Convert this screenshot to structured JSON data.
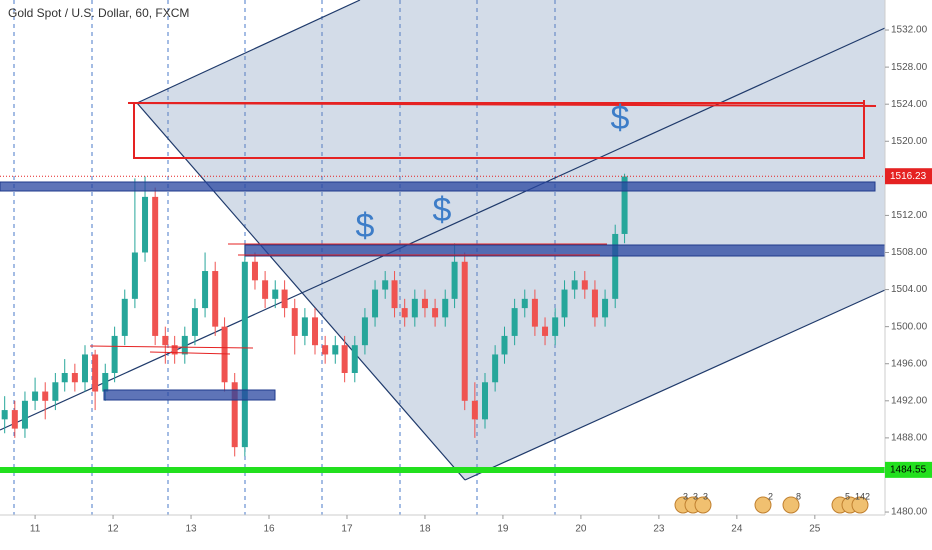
{
  "chart_data": {
    "type": "candlestick",
    "title": "Gold Spot / U.S. Dollar, 60, FXCM",
    "x": [
      -0.39,
      -0.26,
      -0.13,
      0.0,
      0.13,
      0.26,
      0.38,
      0.51,
      0.64,
      0.77,
      0.9,
      1.02,
      1.15,
      1.28,
      1.41,
      1.54,
      1.67,
      1.79,
      1.92,
      2.05,
      2.18,
      2.31,
      2.43,
      2.56,
      2.69,
      2.82,
      2.95,
      3.08,
      3.2,
      3.33,
      3.46,
      3.59,
      3.72,
      3.85,
      3.97,
      4.1,
      4.23,
      4.36,
      4.49,
      4.61,
      4.74,
      4.87,
      5.0,
      5.13,
      5.26,
      5.38,
      5.51,
      5.64,
      5.77,
      5.9,
      6.02,
      6.15,
      6.28,
      6.41,
      6.54,
      6.67,
      6.79,
      6.92,
      7.05,
      7.18,
      7.31,
      7.44,
      7.56
    ],
    "open": [
      1490,
      1491,
      1489,
      1492,
      1493,
      1492,
      1494,
      1495,
      1494,
      1497,
      1493,
      1495,
      1499,
      1503,
      1508,
      1514,
      1499,
      1498,
      1497,
      1499,
      1502,
      1506,
      1500,
      1494,
      1487,
      1507,
      1505,
      1503,
      1504,
      1502,
      1499,
      1501,
      1498,
      1497,
      1498,
      1495,
      1498,
      1501,
      1504,
      1505,
      1502,
      1501,
      1503,
      1502,
      1501,
      1503,
      1507,
      1492,
      1490,
      1494,
      1497,
      1499,
      1502,
      1503,
      1500,
      1499,
      1501,
      1504,
      1505,
      1504,
      1501,
      1503,
      1510
    ],
    "high": [
      1492.5,
      1492,
      1493,
      1494.5,
      1494,
      1495,
      1496.5,
      1496,
      1498,
      1497.5,
      1496,
      1500,
      1504,
      1516,
      1516.2,
      1515,
      1500,
      1499,
      1500,
      1503,
      1508,
      1507,
      1501,
      1495,
      1509,
      1508,
      1506,
      1505,
      1505,
      1503,
      1502,
      1502,
      1499,
      1499,
      1499,
      1499,
      1502,
      1505,
      1506,
      1506,
      1503,
      1504,
      1504,
      1503,
      1504,
      1509,
      1508,
      1494,
      1495,
      1498,
      1500,
      1503,
      1504,
      1504,
      1501,
      1502,
      1505,
      1506,
      1506,
      1505,
      1504,
      1511,
      1516.5
    ],
    "low": [
      1488.5,
      1488,
      1488,
      1491,
      1490,
      1491,
      1493,
      1493,
      1493,
      1491,
      1492,
      1494,
      1498,
      1502,
      1507,
      1498,
      1496,
      1496,
      1496,
      1498,
      1501,
      1499,
      1493,
      1486,
      1486,
      1504,
      1502,
      1502,
      1501,
      1497,
      1498,
      1497,
      1496,
      1496,
      1494,
      1494,
      1497,
      1500,
      1503,
      1501,
      1500,
      1500,
      1501,
      1500,
      1500,
      1502,
      1491,
      1488,
      1489,
      1493,
      1496,
      1498,
      1501,
      1499,
      1498,
      1498,
      1500,
      1503,
      1503,
      1500,
      1500,
      1502,
      1509
    ],
    "close": [
      1491,
      1489,
      1492,
      1493,
      1492,
      1494,
      1495,
      1494,
      1497,
      1493,
      1495,
      1499,
      1503,
      1508,
      1514,
      1499,
      1498,
      1497,
      1499,
      1502,
      1506,
      1500,
      1494,
      1487,
      1507,
      1505,
      1503,
      1504,
      1502,
      1499,
      1501,
      1498,
      1497,
      1498,
      1495,
      1498,
      1501,
      1504,
      1505,
      1502,
      1501,
      1503,
      1502,
      1501,
      1503,
      1507,
      1492,
      1490,
      1494,
      1497,
      1499,
      1502,
      1503,
      1500,
      1499,
      1501,
      1504,
      1505,
      1504,
      1501,
      1503,
      1510,
      1516.2
    ],
    "up_color": "#26a69a",
    "down_color": "#ef5350",
    "ylim": [
      1479.68,
      1535.24
    ],
    "yticks": [
      {
        "value": 1480,
        "label": "1480.00"
      },
      {
        "value": 1484,
        "label": "1484.00"
      },
      {
        "value": 1488,
        "label": "1488.00"
      },
      {
        "value": 1492,
        "label": "1492.00"
      },
      {
        "value": 1496,
        "label": "1496.00"
      },
      {
        "value": 1500,
        "label": "1500.00"
      },
      {
        "value": 1504,
        "label": "1504.00"
      },
      {
        "value": 1508,
        "label": "1508.00"
      },
      {
        "value": 1512,
        "label": "1512.00"
      },
      {
        "value": 1516,
        "label": "1516.00"
      },
      {
        "value": 1520,
        "label": "1520.00"
      },
      {
        "value": 1524,
        "label": "1524.00"
      },
      {
        "value": 1528,
        "label": "1528.00"
      },
      {
        "value": 1532,
        "label": "1532.00"
      }
    ],
    "xlim": [
      -0.45,
      10.9
    ],
    "xticks": [
      {
        "value": 0,
        "label": "11"
      },
      {
        "value": 1,
        "label": "12"
      },
      {
        "value": 2,
        "label": "13"
      },
      {
        "value": 3,
        "label": "16"
      },
      {
        "value": 4,
        "label": "17"
      },
      {
        "value": 5,
        "label": "18"
      },
      {
        "value": 6,
        "label": "19"
      },
      {
        "value": 7,
        "label": "20"
      },
      {
        "value": 8,
        "label": "23"
      },
      {
        "value": 9,
        "label": "24"
      },
      {
        "value": 10,
        "label": "25"
      }
    ],
    "last_price": 1516.23,
    "support_price": 1484.55,
    "annotations": [
      "$",
      "$",
      "$"
    ],
    "events": [
      "3",
      "3",
      "3",
      "2",
      "8",
      "5",
      "14",
      "2"
    ]
  }
}
